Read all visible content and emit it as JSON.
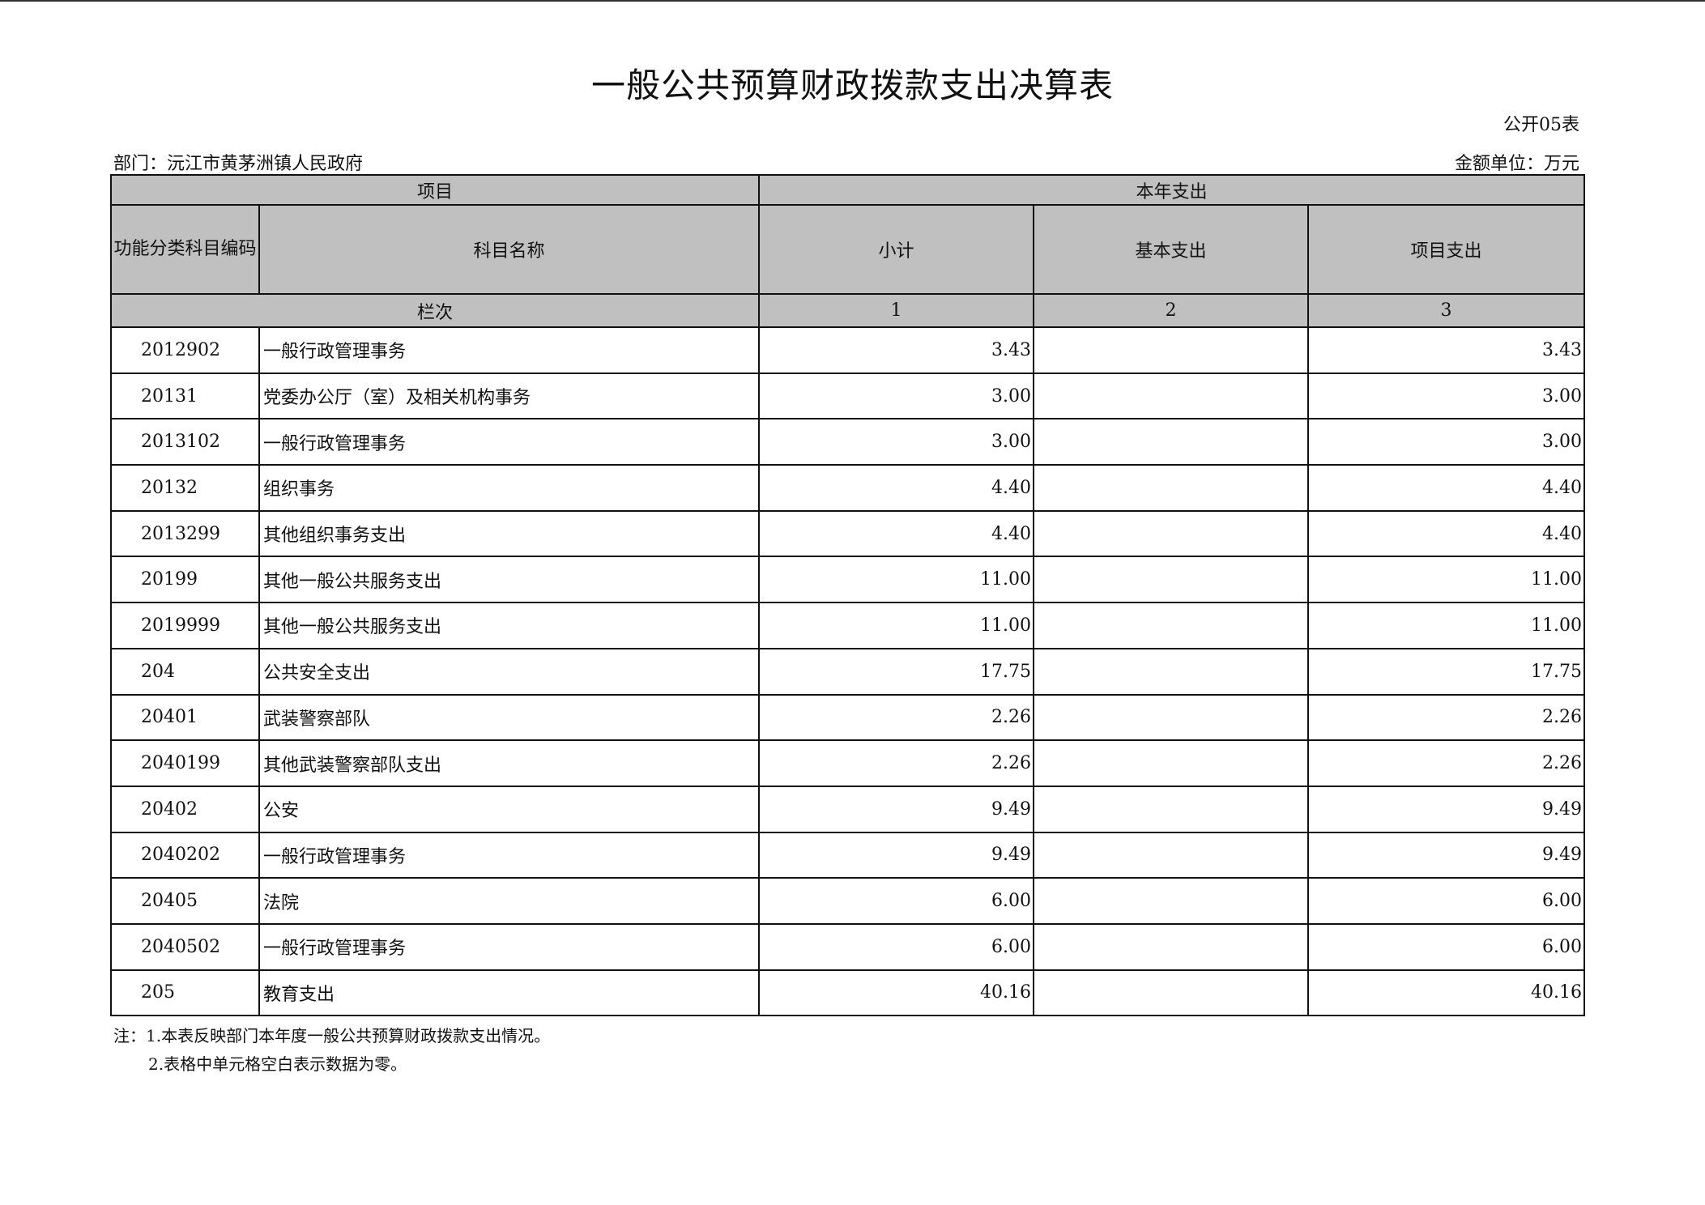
{
  "title": "一般公共预算财政拨款支出决算表",
  "form_no": "公开05表",
  "department": "部门：沅江市黄茅洲镇人民政府",
  "unit": "金额单位：万元",
  "header": {
    "project": "项目",
    "current_year": "本年支出",
    "code": "功能分类科目编码",
    "name": "科目名称",
    "subtotal": "小计",
    "basic": "基本支出",
    "project_exp": "项目支出",
    "column_order": "栏次",
    "col1": "1",
    "col2": "2",
    "col3": "3"
  },
  "rows": [
    {
      "code": "2012902",
      "name": "一般行政管理事务",
      "subtotal": "3.43",
      "basic": "",
      "project": "3.43"
    },
    {
      "code": "20131",
      "name": "党委办公厅（室）及相关机构事务",
      "subtotal": "3.00",
      "basic": "",
      "project": "3.00"
    },
    {
      "code": "2013102",
      "name": "一般行政管理事务",
      "subtotal": "3.00",
      "basic": "",
      "project": "3.00"
    },
    {
      "code": "20132",
      "name": "组织事务",
      "subtotal": "4.40",
      "basic": "",
      "project": "4.40"
    },
    {
      "code": "2013299",
      "name": "其他组织事务支出",
      "subtotal": "4.40",
      "basic": "",
      "project": "4.40"
    },
    {
      "code": "20199",
      "name": "其他一般公共服务支出",
      "subtotal": "11.00",
      "basic": "",
      "project": "11.00"
    },
    {
      "code": "2019999",
      "name": "其他一般公共服务支出",
      "subtotal": "11.00",
      "basic": "",
      "project": "11.00"
    },
    {
      "code": "204",
      "name": "公共安全支出",
      "subtotal": "17.75",
      "basic": "",
      "project": "17.75"
    },
    {
      "code": "20401",
      "name": "武装警察部队",
      "subtotal": "2.26",
      "basic": "",
      "project": "2.26"
    },
    {
      "code": "2040199",
      "name": "其他武装警察部队支出",
      "subtotal": "2.26",
      "basic": "",
      "project": "2.26"
    },
    {
      "code": "20402",
      "name": "公安",
      "subtotal": "9.49",
      "basic": "",
      "project": "9.49"
    },
    {
      "code": "2040202",
      "name": "一般行政管理事务",
      "subtotal": "9.49",
      "basic": "",
      "project": "9.49"
    },
    {
      "code": "20405",
      "name": "法院",
      "subtotal": "6.00",
      "basic": "",
      "project": "6.00"
    },
    {
      "code": "2040502",
      "name": "一般行政管理事务",
      "subtotal": "6.00",
      "basic": "",
      "project": "6.00"
    },
    {
      "code": "205",
      "name": "教育支出",
      "subtotal": "40.16",
      "basic": "",
      "project": "40.16"
    }
  ],
  "notes": [
    "注：1.本表反映部门本年度一般公共预算财政拨款支出情况。",
    "2.表格中单元格空白表示数据为零。"
  ]
}
